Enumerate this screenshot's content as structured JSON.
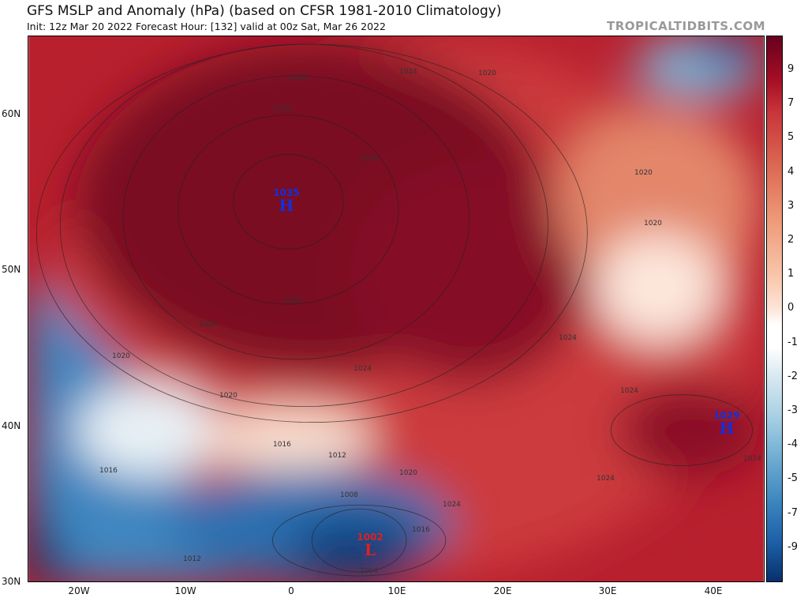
{
  "header": {
    "title": "GFS MSLP and Anomaly (hPa) (based on CFSR 1981-2010 Climatology)",
    "subtitle": "Init: 12z Mar 20 2022   Forecast Hour: [132]   valid at 00z Sat, Mar 26 2022",
    "brand": "TROPICALTIDBITS.COM"
  },
  "axes": {
    "lat": [
      "60N",
      "50N",
      "40N",
      "30N"
    ],
    "lon": [
      "20W",
      "10W",
      "0",
      "10E",
      "20E",
      "30E",
      "40E"
    ]
  },
  "colorbar": {
    "labels": [
      "9",
      "7",
      "5",
      "4",
      "3",
      "2",
      "1",
      "0",
      "-1",
      "-2",
      "-3",
      "-4",
      "-5",
      "-7",
      "-9"
    ]
  },
  "centers": [
    {
      "value": "1035",
      "letter": "H",
      "color": "#1030e0"
    },
    {
      "value": "1029",
      "letter": "H",
      "color": "#1030e0"
    },
    {
      "value": "1002",
      "letter": "L",
      "color": "#e02020"
    }
  ],
  "isobar_labels": [
    "1028",
    "1024",
    "1028",
    "1020",
    "1028",
    "1020",
    "1020",
    "1028",
    "1024",
    "1024",
    "1020",
    "1024",
    "1024",
    "1020",
    "1016",
    "1012",
    "1008",
    "1020",
    "1016",
    "1016",
    "1024",
    "1012",
    "1004",
    "1024",
    "1024"
  ]
}
